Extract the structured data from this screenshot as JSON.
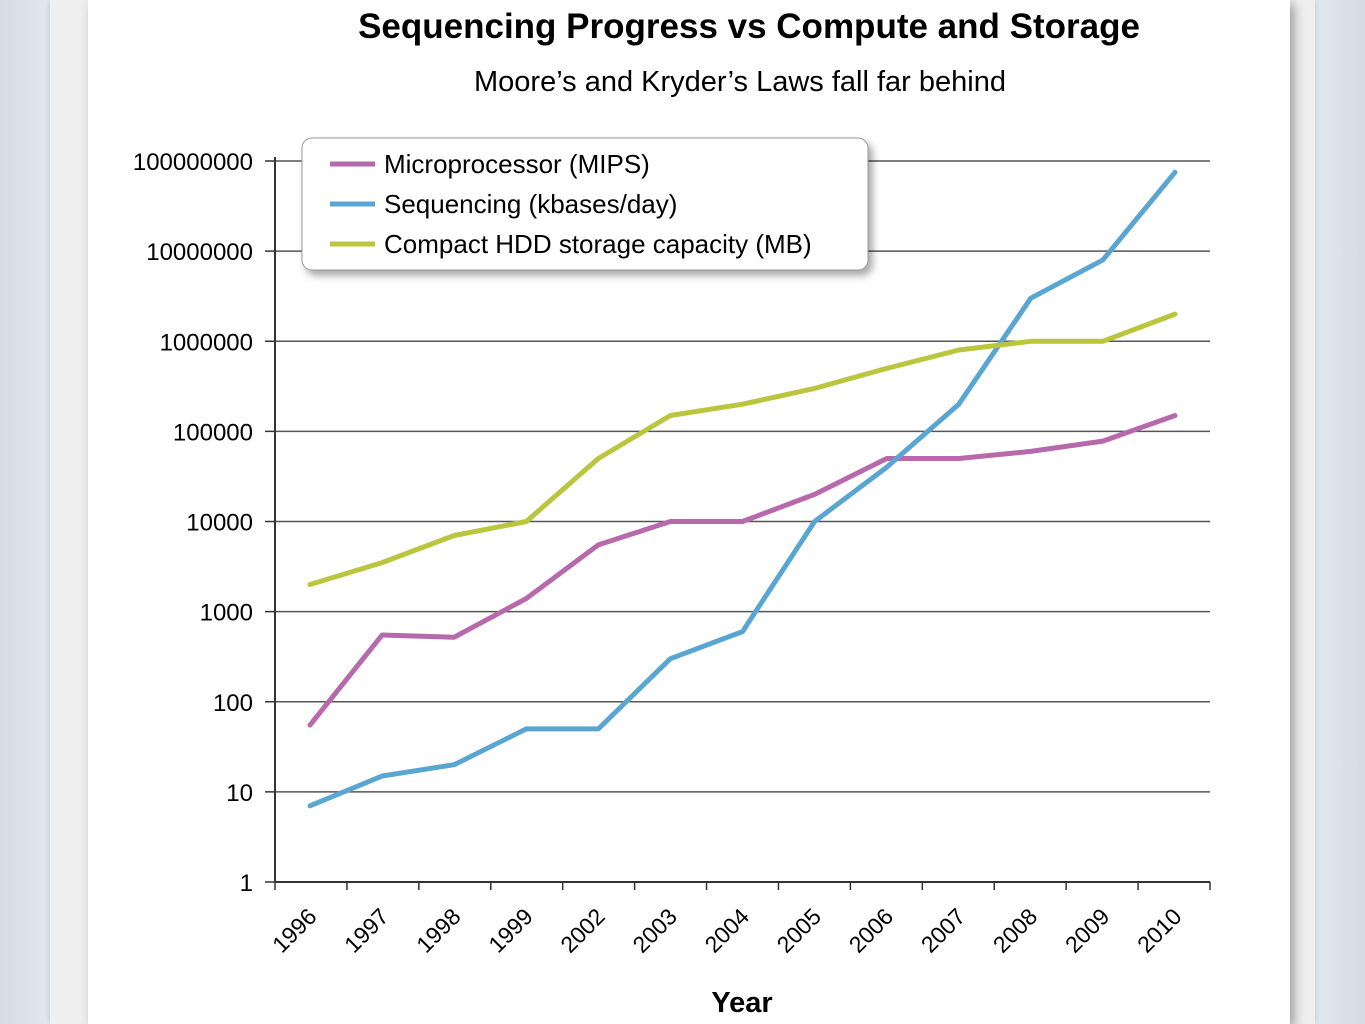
{
  "chart_data": {
    "type": "line",
    "title": "Sequencing Progress vs Compute and Storage",
    "subtitle": "Moore’s and Kryder’s Laws fall far behind",
    "xlabel": "Year",
    "ylabel": "",
    "yscale": "log",
    "ylim": [
      1,
      100000000
    ],
    "yticks": [
      "1",
      "10",
      "100",
      "1000",
      "10000",
      "100000",
      "1000000",
      "10000000",
      "100000000"
    ],
    "categories": [
      "1996",
      "1997",
      "1998",
      "1999",
      "2002",
      "2003",
      "2004",
      "2005",
      "2006",
      "2007",
      "2008",
      "2009",
      "2010"
    ],
    "grid": true,
    "legend_position": "top-left",
    "series": [
      {
        "name": "Microprocessor (MIPS)",
        "color": "#b66aac",
        "values": [
          55,
          550,
          520,
          1400,
          5500,
          10000,
          10000,
          20000,
          50000,
          50000,
          60000,
          78000,
          150000
        ]
      },
      {
        "name": "Sequencing (kbases/day)",
        "color": "#5aa6d3",
        "values": [
          7,
          15,
          20,
          50,
          50,
          300,
          600,
          10000,
          40000,
          200000,
          3000000,
          8000000,
          75000000
        ]
      },
      {
        "name": "Compact HDD storage capacity (MB)",
        "color": "#b9c63e",
        "values": [
          2000,
          3500,
          7000,
          10000,
          50000,
          150000,
          200000,
          300000,
          500000,
          800000,
          1000000,
          1000000,
          2000000
        ]
      }
    ]
  }
}
